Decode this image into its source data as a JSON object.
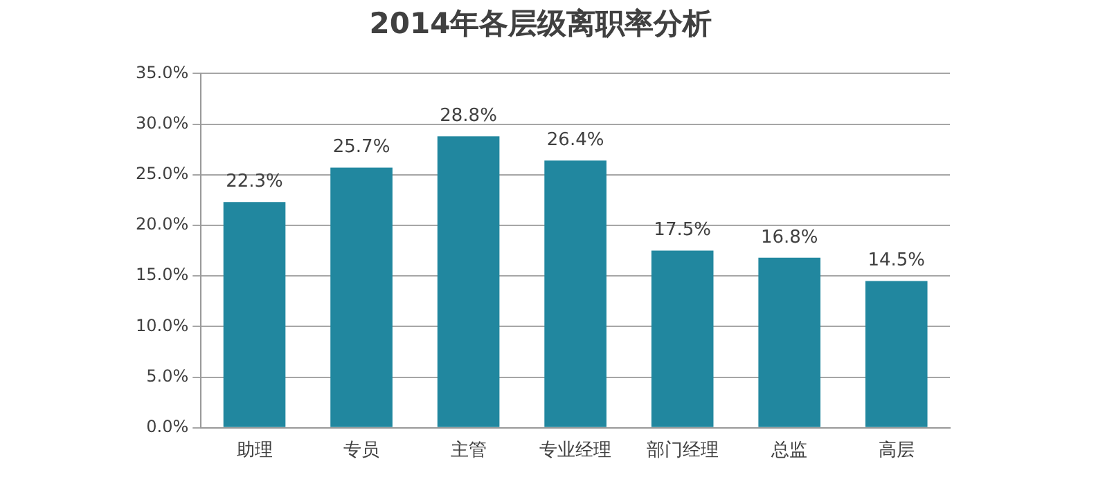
{
  "chart_data": {
    "type": "bar",
    "title": "2014年各层级离职率分析",
    "categories": [
      "助理",
      "专员",
      "主管",
      "专业经理",
      "部门经理",
      "总监",
      "高层"
    ],
    "values": [
      22.3,
      25.7,
      28.8,
      26.4,
      17.5,
      16.8,
      14.5
    ],
    "color": "#21879f",
    "value_labels": [
      "22.3%",
      "25.7%",
      "28.8%",
      "26.4%",
      "17.5%",
      "16.8%",
      "14.5%"
    ],
    "ylim": [
      0,
      35
    ],
    "yticks": [
      {
        "value": 0,
        "label": "0.0%"
      },
      {
        "value": 5,
        "label": "5.0%"
      },
      {
        "value": 10,
        "label": "10.0%"
      },
      {
        "value": 15,
        "label": "15.0%"
      },
      {
        "value": 20,
        "label": "20.0%"
      },
      {
        "value": 25,
        "label": "25.0%"
      },
      {
        "value": 30,
        "label": "30.0%"
      },
      {
        "value": 35,
        "label": "35.0%"
      }
    ],
    "grid": "y"
  }
}
